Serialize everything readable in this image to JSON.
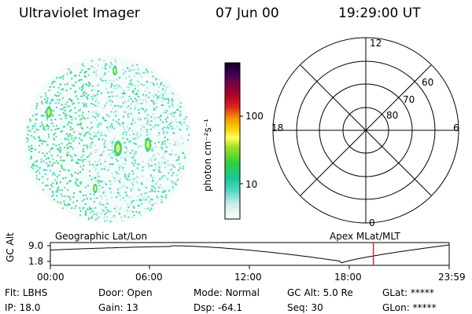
{
  "header": {
    "instrument": "Ultraviolet Imager",
    "date": "07 Jun 00",
    "time": "19:29:00 UT"
  },
  "colorbar": {
    "label": "photon cm⁻²s⁻¹",
    "ticks": [
      "100",
      "10"
    ]
  },
  "polar_plot": {
    "mlt_labels": {
      "top": "12",
      "left": "18",
      "right": "6",
      "bottom": "0"
    },
    "lat_labels": [
      "60",
      "70",
      "80"
    ]
  },
  "timeline": {
    "left_title": "Geographic Lat/Lon",
    "right_title": "Apex MLat/MLT",
    "yaxis_label": "GC Alt",
    "y_ticks": [
      "9.0",
      "1.8"
    ],
    "x_ticks": [
      "00:00",
      "06:00",
      "12:00",
      "18:00",
      "23:59"
    ],
    "current_time_fraction": 0.81
  },
  "info": {
    "row1": [
      {
        "label": "Flt:",
        "value": "LBHS"
      },
      {
        "label": "Door:",
        "value": "Open"
      },
      {
        "label": "Mode:",
        "value": "Normal"
      },
      {
        "label": "GC Alt:",
        "value": "5.0 Re"
      },
      {
        "label": "GLat:",
        "value": "*****"
      }
    ],
    "row2": [
      {
        "label": "IP:",
        "value": "18.0"
      },
      {
        "label": "Gain:",
        "value": "13"
      },
      {
        "label": "Dsp:",
        "value": "-64.1"
      },
      {
        "label": "Seq:",
        "value": "30"
      },
      {
        "label": "GLon:",
        "value": "*****"
      }
    ]
  },
  "colors": {
    "marker": "#c03030",
    "speckle_main": "#3ad878",
    "speckle_cyan": "#46d8c8",
    "speckle_pale": "#a8e8e0",
    "bright_spot": "#e8f060"
  }
}
